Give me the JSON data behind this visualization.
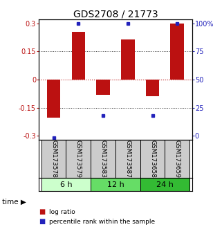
{
  "title": "GDS2708 / 21773",
  "samples": [
    "GSM173578",
    "GSM173579",
    "GSM173583",
    "GSM173587",
    "GSM173658",
    "GSM173659"
  ],
  "log_ratios": [
    -0.205,
    0.255,
    -0.08,
    0.215,
    -0.09,
    0.3
  ],
  "percentile_ranks": [
    1.5,
    97.0,
    20.0,
    97.0,
    20.0,
    97.0
  ],
  "ylim": [
    -0.32,
    0.32
  ],
  "yticks": [
    -0.3,
    -0.15,
    0,
    0.15,
    0.3
  ],
  "ytick_labels_left": [
    "-0.3",
    "-0.15",
    "0",
    "0.15",
    "0.3"
  ],
  "ytick_labels_right": [
    "0",
    "25",
    "50",
    "75",
    "100%"
  ],
  "bar_color": "#BB1111",
  "square_color": "#2222BB",
  "hline_color": "#BB1111",
  "dotted_color": "#333333",
  "title_fontsize": 10,
  "tick_fontsize": 7,
  "group_label_fontsize": 8,
  "sample_fontsize": 6.5,
  "bar_width": 0.55,
  "group_configs": [
    {
      "label": "6 h",
      "start": 0,
      "end": 1,
      "color": "#CCFFCC"
    },
    {
      "label": "12 h",
      "start": 2,
      "end": 3,
      "color": "#66DD66"
    },
    {
      "label": "24 h",
      "start": 4,
      "end": 5,
      "color": "#33BB33"
    }
  ],
  "legend_labels": [
    "log ratio",
    "percentile rank within the sample"
  ],
  "legend_colors": [
    "#BB1111",
    "#2222BB"
  ]
}
